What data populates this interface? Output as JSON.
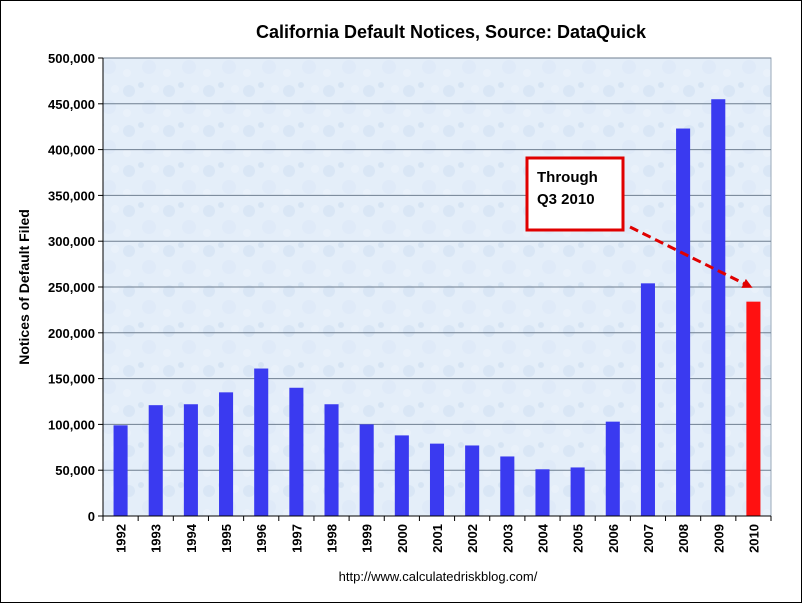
{
  "chart_data": {
    "type": "bar",
    "title": "California Default Notices, Source: DataQuick",
    "ylabel": "Notices of Default Filed",
    "xlabel": "",
    "source": "http://www.calculatedriskblog.com/",
    "ylim": [
      0,
      500000
    ],
    "yticks": [
      "0",
      "50,000",
      "100,000",
      "150,000",
      "200,000",
      "250,000",
      "300,000",
      "350,000",
      "400,000",
      "450,000",
      "500,000"
    ],
    "grid": true,
    "categories": [
      "1992",
      "1993",
      "1994",
      "1995",
      "1996",
      "1997",
      "1998",
      "1999",
      "2000",
      "2001",
      "2002",
      "2003",
      "2004",
      "2005",
      "2006",
      "2007",
      "2008",
      "2009",
      "2010"
    ],
    "values": [
      99000,
      121000,
      122000,
      135000,
      161000,
      140000,
      122000,
      100000,
      88000,
      79000,
      77000,
      65000,
      51000,
      53000,
      103000,
      254000,
      423000,
      455000,
      234000
    ],
    "bar_colors": [
      "#3a3af0",
      "#3a3af0",
      "#3a3af0",
      "#3a3af0",
      "#3a3af0",
      "#3a3af0",
      "#3a3af0",
      "#3a3af0",
      "#3a3af0",
      "#3a3af0",
      "#3a3af0",
      "#3a3af0",
      "#3a3af0",
      "#3a3af0",
      "#3a3af0",
      "#3a3af0",
      "#3a3af0",
      "#3a3af0",
      "#ff1111"
    ],
    "annotation": {
      "lines": [
        "Through",
        "Q3 2010"
      ],
      "target_category": "2010",
      "border_color": "#e00000",
      "arrow_color": "#e00000"
    }
  }
}
